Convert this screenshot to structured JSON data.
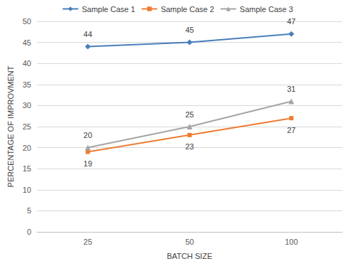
{
  "chart_data": {
    "type": "line",
    "x_label": "BATCH SIZE",
    "y_label": "PERCENTAGE OF IMPROVMENT",
    "categories": [
      "25",
      "50",
      "100"
    ],
    "series": [
      {
        "name": "Sample Case 1",
        "color": "#4a7ebb",
        "marker": "diamond",
        "values": [
          44,
          45,
          47
        ]
      },
      {
        "name": "Sample Case 2",
        "color": "#ed7d31",
        "marker": "square",
        "values": [
          19,
          23,
          27
        ]
      },
      {
        "name": "Sample Case 3",
        "color": "#a5a5a5",
        "marker": "triangle",
        "values": [
          20,
          25,
          31
        ]
      }
    ],
    "ylim": [
      0,
      50
    ],
    "yticks": [
      0,
      5,
      10,
      15,
      20,
      25,
      30,
      35,
      40,
      45,
      50
    ],
    "grid": true,
    "legend": "top",
    "data_labels": true
  }
}
